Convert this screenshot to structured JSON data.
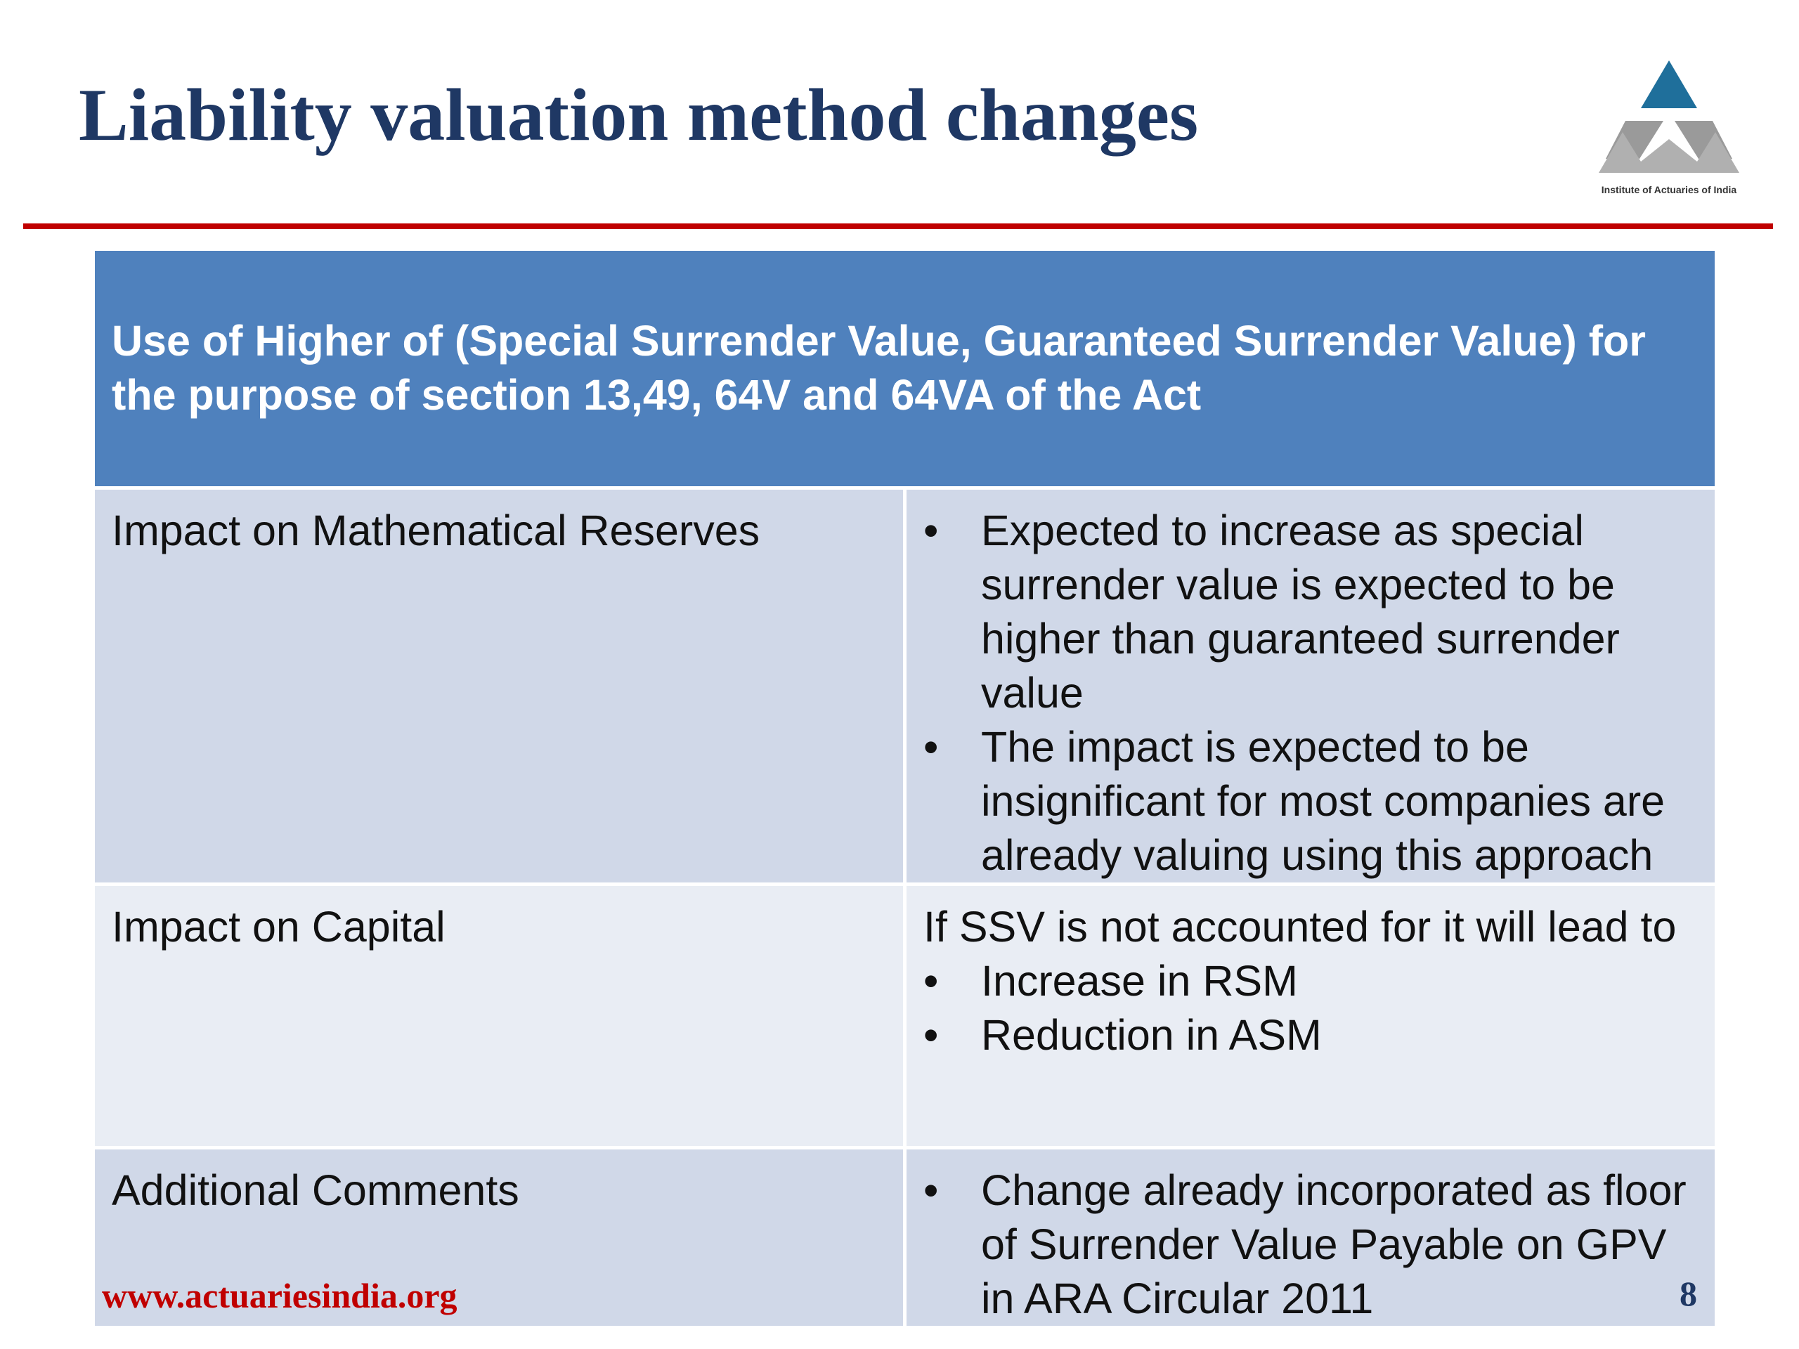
{
  "slide": {
    "title": "Liability valuation method changes",
    "logo_caption": "Institute of Actuaries of India",
    "footer_url": "www.actuariesindia.org",
    "page_number": "8"
  },
  "table": {
    "header": "Use of  Higher of (Special Surrender Value, Guaranteed Surrender Value) for the purpose of section 13,49, 64V and 64VA of the Act",
    "rows": [
      {
        "label": "Impact on Mathematical Reserves",
        "lead": "",
        "bullets": [
          "Expected to increase as special surrender value is expected to be higher than guaranteed surrender value",
          "The impact is expected to be insignificant for most companies are already valuing using this approach"
        ]
      },
      {
        "label": "Impact on Capital",
        "lead": "If SSV is not accounted for it will lead to",
        "bullets": [
          "Increase in RSM",
          "Reduction in ASM"
        ]
      },
      {
        "label": "Additional Comments",
        "lead": "",
        "bullets": [
          "Change already incorporated as floor of Surrender Value Payable on GPV in ARA Circular 2011"
        ]
      }
    ]
  },
  "colors": {
    "title": "#1f3864",
    "accent_red": "#c00000",
    "header_blue": "#4f81bd",
    "row_dark": "#d0d8e8",
    "row_light": "#e9edf4"
  }
}
